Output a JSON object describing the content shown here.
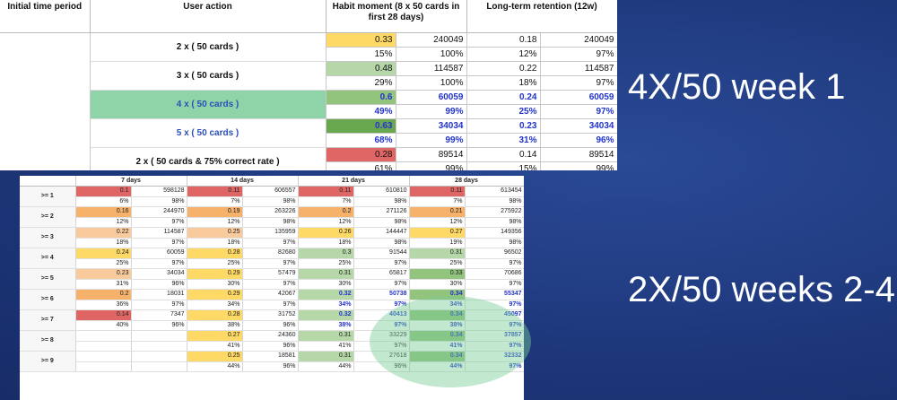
{
  "colors": {
    "background": "#1f3b80",
    "red": "#e06666",
    "orange": "#f6b26b",
    "yellow": "#ffd966",
    "lightgreen": "#b6d7a8",
    "green": "#93c47d",
    "darkgreen": "#6aa84f",
    "highlight": "#8fd3a8"
  },
  "table1": {
    "headers": [
      "Initial time period",
      "User action",
      "Habit moment (8 x 50 cards in first 28 days)",
      "Long-term retention (12w)"
    ],
    "rows": [
      {
        "action": "2 x ( 50 cards )",
        "blue": false,
        "highlight": false,
        "r1": [
          {
            "v": "0.33",
            "c": "#ffd966"
          },
          {
            "v": "240049"
          },
          {
            "v": "0.18"
          },
          {
            "v": "240049"
          }
        ],
        "r2": [
          {
            "v": "15%"
          },
          {
            "v": "100%"
          },
          {
            "v": "12%"
          },
          {
            "v": "97%"
          }
        ]
      },
      {
        "action": "3 x ( 50 cards )",
        "blue": false,
        "highlight": false,
        "r1": [
          {
            "v": "0.48",
            "c": "#b6d7a8"
          },
          {
            "v": "114587"
          },
          {
            "v": "0.22"
          },
          {
            "v": "114587"
          }
        ],
        "r2": [
          {
            "v": "29%"
          },
          {
            "v": "100%"
          },
          {
            "v": "18%"
          },
          {
            "v": "97%"
          }
        ]
      },
      {
        "action": "4 x ( 50 cards )",
        "blue": true,
        "highlight": true,
        "r1": [
          {
            "v": "0.6",
            "c": "#93c47d"
          },
          {
            "v": "60059"
          },
          {
            "v": "0.24"
          },
          {
            "v": "60059"
          }
        ],
        "r2": [
          {
            "v": "49%"
          },
          {
            "v": "99%"
          },
          {
            "v": "25%"
          },
          {
            "v": "97%"
          }
        ]
      },
      {
        "action": "5 x ( 50 cards )",
        "blue": true,
        "highlight": false,
        "r1": [
          {
            "v": "0.63",
            "c": "#6aa84f"
          },
          {
            "v": "34034"
          },
          {
            "v": "0.23"
          },
          {
            "v": "34034"
          }
        ],
        "r2": [
          {
            "v": "68%"
          },
          {
            "v": "99%"
          },
          {
            "v": "31%"
          },
          {
            "v": "96%"
          }
        ]
      },
      {
        "action": "2 x ( 50 cards & 75% correct rate )",
        "blue": false,
        "highlight": false,
        "r1": [
          {
            "v": "0.28",
            "c": "#e06666"
          },
          {
            "v": "89514"
          },
          {
            "v": "0.14"
          },
          {
            "v": "89514"
          }
        ],
        "r2": [
          {
            "v": "61%"
          },
          {
            "v": "99%"
          },
          {
            "v": "15%"
          },
          {
            "v": "99%"
          }
        ]
      }
    ]
  },
  "table2": {
    "headers": [
      "7 days",
      "14 days",
      "21 days",
      "28 days"
    ],
    "rows": [
      {
        "label": ">= 1",
        "a": [
          {
            "v": "0.1",
            "c": "#e06666"
          },
          {
            "v": "0.11",
            "c": "#e06666"
          },
          {
            "v": "0.11",
            "c": "#e06666"
          },
          {
            "v": "0.11",
            "c": "#e06666"
          }
        ],
        "n": [
          "598128",
          "606557",
          "610810",
          "613454"
        ],
        "p": [
          "6%",
          "7%",
          "7%",
          "7%"
        ],
        "q": [
          "98%",
          "98%",
          "98%",
          "98%"
        ],
        "blue": [
          false,
          false,
          false,
          false
        ]
      },
      {
        "label": ">= 2",
        "a": [
          {
            "v": "0.16",
            "c": "#f6b26b"
          },
          {
            "v": "0.19",
            "c": "#f6b26b"
          },
          {
            "v": "0.2",
            "c": "#f6b26b"
          },
          {
            "v": "0.21",
            "c": "#f6b26b"
          }
        ],
        "n": [
          "244970",
          "263226",
          "271126",
          "275922"
        ],
        "p": [
          "12%",
          "12%",
          "12%",
          "12%"
        ],
        "q": [
          "97%",
          "98%",
          "98%",
          "98%"
        ],
        "blue": [
          false,
          false,
          false,
          false
        ]
      },
      {
        "label": ">= 3",
        "a": [
          {
            "v": "0.22",
            "c": "#f9cb9c"
          },
          {
            "v": "0.25",
            "c": "#f9cb9c"
          },
          {
            "v": "0.26",
            "c": "#ffd966"
          },
          {
            "v": "0.27",
            "c": "#ffd966"
          }
        ],
        "n": [
          "114587",
          "135959",
          "144447",
          "149356"
        ],
        "p": [
          "18%",
          "18%",
          "18%",
          "19%"
        ],
        "q": [
          "97%",
          "97%",
          "98%",
          "98%"
        ],
        "blue": [
          false,
          false,
          false,
          false
        ]
      },
      {
        "label": ">= 4",
        "a": [
          {
            "v": "0.24",
            "c": "#ffd966"
          },
          {
            "v": "0.28",
            "c": "#ffd966"
          },
          {
            "v": "0.3",
            "c": "#b6d7a8"
          },
          {
            "v": "0.31",
            "c": "#b6d7a8"
          }
        ],
        "n": [
          "60059",
          "82680",
          "91544",
          "96502"
        ],
        "p": [
          "25%",
          "25%",
          "25%",
          "25%"
        ],
        "q": [
          "97%",
          "97%",
          "97%",
          "97%"
        ],
        "blue": [
          false,
          false,
          false,
          false
        ]
      },
      {
        "label": ">= 5",
        "a": [
          {
            "v": "0.23",
            "c": "#f9cb9c"
          },
          {
            "v": "0.29",
            "c": "#ffd966"
          },
          {
            "v": "0.31",
            "c": "#b6d7a8"
          },
          {
            "v": "0.33",
            "c": "#93c47d"
          }
        ],
        "n": [
          "34034",
          "57479",
          "65817",
          "70686"
        ],
        "p": [
          "31%",
          "30%",
          "30%",
          "30%"
        ],
        "q": [
          "96%",
          "97%",
          "97%",
          "97%"
        ],
        "blue": [
          false,
          false,
          false,
          false
        ]
      },
      {
        "label": ">= 6",
        "a": [
          {
            "v": "0.2",
            "c": "#f6b26b"
          },
          {
            "v": "0.29",
            "c": "#ffd966"
          },
          {
            "v": "0.32",
            "c": "#b6d7a8"
          },
          {
            "v": "0.34",
            "c": "#93c47d"
          }
        ],
        "n": [
          "18031",
          "42067",
          "50738",
          "55347"
        ],
        "p": [
          "36%",
          "34%",
          "34%",
          "34%"
        ],
        "q": [
          "97%",
          "97%",
          "97%",
          "97%"
        ],
        "blue": [
          false,
          false,
          true,
          true
        ]
      },
      {
        "label": ">= 7",
        "a": [
          {
            "v": "0.14",
            "c": "#e06666"
          },
          {
            "v": "0.28",
            "c": "#ffd966"
          },
          {
            "v": "0.32",
            "c": "#b6d7a8"
          },
          {
            "v": "0.34",
            "c": "#93c47d"
          }
        ],
        "n": [
          "7347",
          "31752",
          "40413",
          "45097"
        ],
        "p": [
          "40%",
          "38%",
          "38%",
          "38%"
        ],
        "q": [
          "96%",
          "96%",
          "97%",
          "97%"
        ],
        "blue": [
          false,
          false,
          true,
          true
        ]
      },
      {
        "label": ">= 8",
        "a": [
          {
            "v": "",
            "c": "#ffffff"
          },
          {
            "v": "0.27",
            "c": "#ffd966"
          },
          {
            "v": "0.31",
            "c": "#b6d7a8"
          },
          {
            "v": "0.34",
            "c": "#93c47d"
          }
        ],
        "n": [
          "",
          "24360",
          "33229",
          "37857"
        ],
        "p": [
          "",
          "41%",
          "41%",
          "41%"
        ],
        "q": [
          "",
          "96%",
          "97%",
          "97%"
        ],
        "blue": [
          false,
          false,
          false,
          true
        ]
      },
      {
        "label": ">= 9",
        "a": [
          {
            "v": "",
            "c": "#ffffff"
          },
          {
            "v": "0.25",
            "c": "#ffd966"
          },
          {
            "v": "0.31",
            "c": "#b6d7a8"
          },
          {
            "v": "0.34",
            "c": "#93c47d"
          }
        ],
        "n": [
          "",
          "18581",
          "27618",
          "32332"
        ],
        "p": [
          "",
          "44%",
          "44%",
          "44%"
        ],
        "q": [
          "",
          "96%",
          "96%",
          "97%"
        ],
        "blue": [
          false,
          false,
          false,
          true
        ]
      }
    ]
  },
  "labels": {
    "top": "4X/50 week 1",
    "bottom": "2X/50 weeks 2-4"
  }
}
